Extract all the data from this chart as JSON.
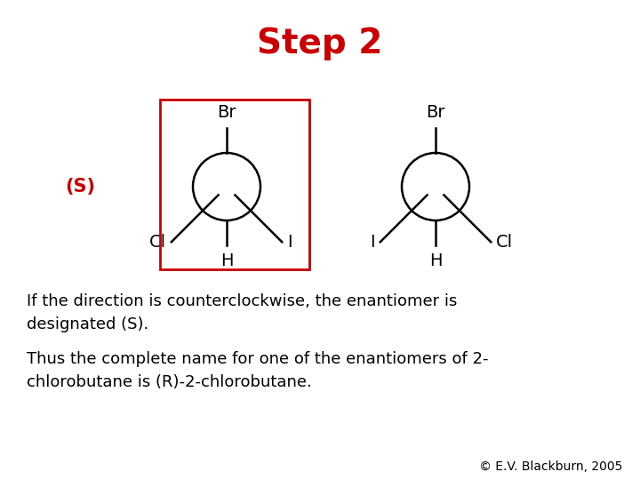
{
  "title": "Step 2",
  "title_color": "#cc0000",
  "title_fontsize": 28,
  "background_color": "#ffffff",
  "s_label": "(S)",
  "s_label_color": "#cc0000",
  "s_label_fontsize": 15,
  "rect_color": "#cc0000",
  "mol_label_fontsize": 14,
  "text1_line1": "If the direction is counterclockwise, the enantiomer is",
  "text1_line2": "designated (S).",
  "text2_line1": "Thus the complete name for one of the enantiomers of 2-",
  "text2_line2": "chlorobutane is (R)-2-chlorobutane.",
  "text_fontsize": 13,
  "copyright": "© E.V. Blackburn, 2005",
  "copyright_fontsize": 10
}
